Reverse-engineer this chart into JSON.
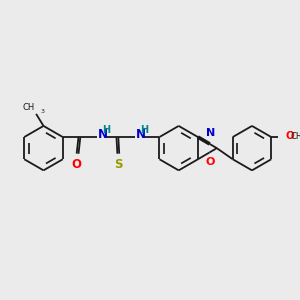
{
  "bg_color": "#ebebeb",
  "bond_color": "#1a1a1a",
  "line_width": 1.3,
  "N_color": "#0000cc",
  "O_color": "#ff0000",
  "S_color": "#999900",
  "H_color": "#008888",
  "figsize": [
    3.0,
    3.0
  ],
  "dpi": 100,
  "xlim": [
    0,
    300
  ],
  "ylim": [
    0,
    300
  ]
}
